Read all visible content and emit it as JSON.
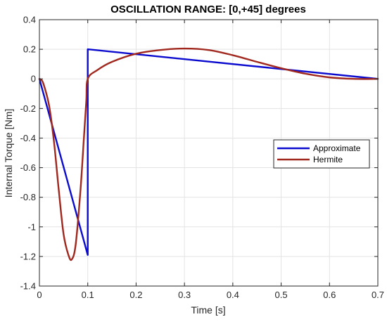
{
  "chart_data": {
    "type": "line",
    "title": "OSCILLATION RANGE: [0,+45] degrees",
    "xlabel": "Time [s]",
    "ylabel": "Internal Torque [Nm]",
    "xlim": [
      0,
      0.7
    ],
    "ylim": [
      -1.4,
      0.4
    ],
    "xticks": [
      0,
      0.1,
      0.2,
      0.3,
      0.4,
      0.5,
      0.6,
      0.7
    ],
    "xtick_labels": [
      "0",
      "0.1",
      "0.2",
      "0.3",
      "0.4",
      "0.5",
      "0.6",
      "0.7"
    ],
    "yticks": [
      -1.4,
      -1.2,
      -1,
      -0.8,
      -0.6,
      -0.4,
      -0.2,
      0,
      0.2,
      0.4
    ],
    "ytick_labels": [
      "-1.4",
      "-1.2",
      "-1",
      "-0.8",
      "-0.6",
      "-0.4",
      "-0.2",
      "0",
      "0.2",
      "0.4"
    ],
    "grid": true,
    "legend_position": "center-right",
    "series": [
      {
        "name": "Approximate",
        "color": "#0b0bcf",
        "x": [
          0,
          0.1,
          0.1,
          0.7
        ],
        "y": [
          0,
          -1.19,
          0.2,
          0.0
        ]
      },
      {
        "name": "Hermite",
        "color": "#a0281e",
        "x": [
          0,
          0.005,
          0.01,
          0.02,
          0.03,
          0.04,
          0.05,
          0.06,
          0.067,
          0.075,
          0.085,
          0.092,
          0.097,
          0.1,
          0.12,
          0.15,
          0.2,
          0.25,
          0.3,
          0.35,
          0.4,
          0.45,
          0.5,
          0.55,
          0.6,
          0.65,
          0.7
        ],
        "y": [
          0,
          -0.01,
          -0.05,
          -0.18,
          -0.42,
          -0.75,
          -1.05,
          -1.19,
          -1.22,
          -1.12,
          -0.75,
          -0.4,
          -0.15,
          0.0,
          0.06,
          0.115,
          0.17,
          0.195,
          0.205,
          0.195,
          0.16,
          0.115,
          0.072,
          0.035,
          0.01,
          0.0,
          0.0
        ]
      }
    ]
  }
}
